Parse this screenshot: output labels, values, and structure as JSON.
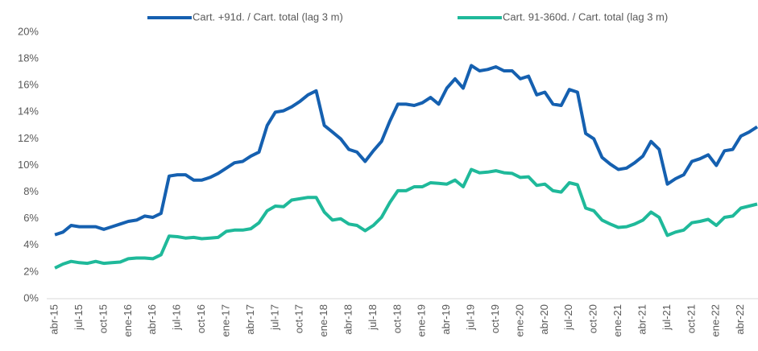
{
  "chart_data": {
    "type": "line",
    "categories": [
      "abr-15",
      null,
      null,
      "jul-15",
      null,
      null,
      "oct-15",
      null,
      null,
      "ene-16",
      null,
      null,
      "abr-16",
      null,
      null,
      "jul-16",
      null,
      null,
      "oct-16",
      null,
      null,
      "ene-17",
      null,
      null,
      "abr-17",
      null,
      null,
      "jul-17",
      null,
      null,
      "oct-17",
      null,
      null,
      "ene-18",
      null,
      null,
      "abr-18",
      null,
      null,
      "jul-18",
      null,
      null,
      "oct-18",
      null,
      null,
      "ene-19",
      null,
      null,
      "abr-19",
      null,
      null,
      "jul-19",
      null,
      null,
      "oct-19",
      null,
      null,
      "ene-20",
      null,
      null,
      "abr-20",
      null,
      null,
      "jul-20",
      null,
      null,
      "oct-20",
      null,
      null,
      "ene-21",
      null,
      null,
      "abr-21",
      null,
      null,
      "jul-21",
      null,
      null,
      "oct-21",
      null,
      null,
      "ene-22",
      null,
      null,
      "abr-22",
      null,
      null
    ],
    "series": [
      {
        "name": "Cart. +91d. / Cart. total (lag 3 m)",
        "color": "#1560b0",
        "values": [
          4.8,
          5.0,
          5.5,
          5.4,
          5.4,
          5.4,
          5.2,
          5.4,
          5.6,
          5.8,
          5.9,
          6.2,
          6.1,
          6.4,
          9.2,
          9.3,
          9.3,
          8.9,
          8.9,
          9.1,
          9.4,
          9.8,
          10.2,
          10.3,
          10.7,
          11.0,
          13.0,
          14.0,
          14.1,
          14.4,
          14.8,
          15.3,
          15.6,
          13.0,
          12.5,
          12.0,
          11.2,
          11.0,
          10.3,
          11.1,
          11.8,
          13.3,
          14.6,
          14.6,
          14.5,
          14.7,
          15.1,
          14.6,
          15.8,
          16.5,
          15.8,
          17.5,
          17.1,
          17.2,
          17.4,
          17.1,
          17.1,
          16.5,
          16.7,
          15.3,
          15.5,
          14.6,
          14.5,
          15.7,
          15.5,
          12.4,
          12.0,
          10.6,
          10.1,
          9.7,
          9.8,
          10.2,
          10.7,
          11.8,
          11.2,
          8.6,
          9.0,
          9.3,
          10.3,
          10.5,
          10.8,
          10.0,
          11.1,
          11.2,
          12.2,
          12.5,
          12.9
        ]
      },
      {
        "name": "Cart. 91-360d. / Cart. total (lag 3 m)",
        "color": "#1fb99a",
        "values": [
          2.3,
          2.6,
          2.8,
          2.7,
          2.65,
          2.8,
          2.65,
          2.7,
          2.75,
          3.0,
          3.05,
          3.05,
          3.0,
          3.3,
          4.7,
          4.65,
          4.55,
          4.6,
          4.5,
          4.55,
          4.6,
          5.05,
          5.15,
          5.15,
          5.25,
          5.7,
          6.6,
          6.95,
          6.9,
          7.4,
          7.5,
          7.6,
          7.6,
          6.5,
          5.9,
          6.0,
          5.6,
          5.5,
          5.1,
          5.5,
          6.1,
          7.2,
          8.1,
          8.1,
          8.4,
          8.4,
          8.7,
          8.65,
          8.6,
          8.9,
          8.4,
          9.7,
          9.45,
          9.5,
          9.6,
          9.45,
          9.4,
          9.1,
          9.15,
          8.5,
          8.6,
          8.1,
          8.0,
          8.7,
          8.55,
          6.8,
          6.6,
          5.9,
          5.6,
          5.35,
          5.4,
          5.6,
          5.9,
          6.5,
          6.1,
          4.75,
          5.0,
          5.15,
          5.7,
          5.8,
          5.95,
          5.5,
          6.1,
          6.2,
          6.8,
          6.95,
          7.1
        ]
      }
    ],
    "ylim": [
      0,
      20
    ],
    "yticks": [
      {
        "value": 0,
        "label": "0%"
      },
      {
        "value": 2,
        "label": "2%"
      },
      {
        "value": 4,
        "label": "4%"
      },
      {
        "value": 6,
        "label": "6%"
      },
      {
        "value": 8,
        "label": "8%"
      },
      {
        "value": 10,
        "label": "10%"
      },
      {
        "value": 12,
        "label": "12%"
      },
      {
        "value": 14,
        "label": "14%"
      },
      {
        "value": 16,
        "label": "16%"
      },
      {
        "value": 18,
        "label": "18%"
      },
      {
        "value": 20,
        "label": "20%"
      }
    ],
    "grid": false,
    "legend": "top"
  }
}
